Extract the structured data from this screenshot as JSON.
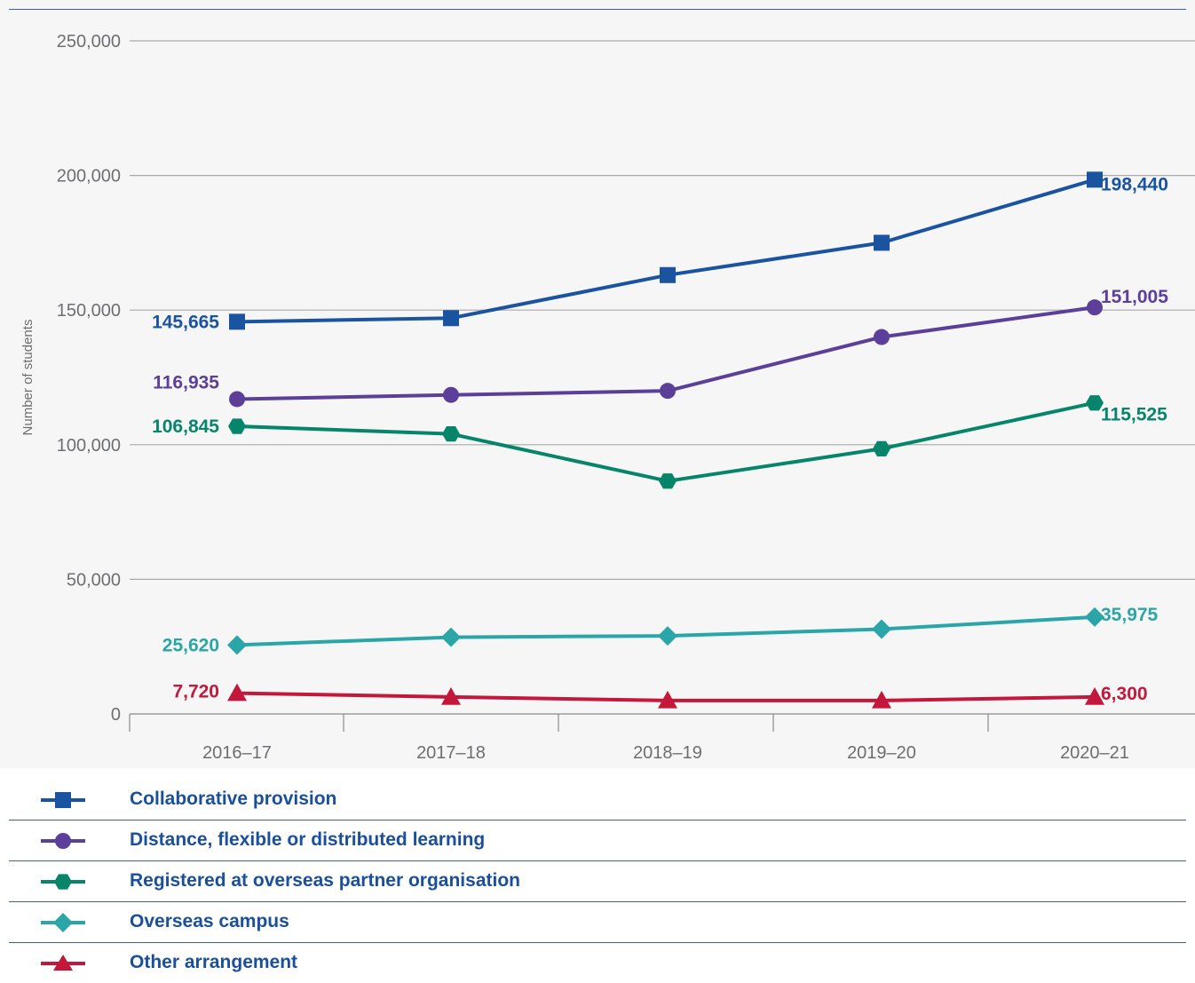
{
  "chart_data": {
    "type": "line",
    "title": "",
    "xlabel": "",
    "ylabel": "Number of students",
    "ylim": [
      0,
      250000
    ],
    "yticks": [
      0,
      50000,
      100000,
      150000,
      200000,
      250000
    ],
    "ytick_labels": [
      "0",
      "50,000",
      "100,000",
      "150,000",
      "200,000",
      "250,000"
    ],
    "categories": [
      "2016–17",
      "2017–18",
      "2018–19",
      "2019–20",
      "2020–21"
    ],
    "grid": "horizontal",
    "legend_position": "bottom",
    "series": [
      {
        "name": "Collaborative provision",
        "color": "#1a54a0",
        "marker": "square",
        "values": [
          145665,
          147000,
          163000,
          175000,
          198440
        ],
        "labels": {
          "first": "145,665",
          "last": "198,440"
        }
      },
      {
        "name": "Distance, flexible or distributed learning",
        "color": "#5b3f98",
        "marker": "circle",
        "values": [
          116935,
          118500,
          120000,
          140000,
          151005
        ],
        "labels": {
          "first": "116,935",
          "last": "151,005"
        }
      },
      {
        "name": "Registered at overseas partner organisation",
        "color": "#06856a",
        "marker": "hexagon",
        "values": [
          106845,
          104000,
          86500,
          98500,
          115525
        ],
        "labels": {
          "first": "106,845",
          "last": "115,525"
        }
      },
      {
        "name": "Overseas campus",
        "color": "#2aa5a8",
        "marker": "diamond",
        "values": [
          25620,
          28500,
          29000,
          31500,
          35975
        ],
        "labels": {
          "first": "25,620",
          "last": "35,975"
        }
      },
      {
        "name": "Other arrangement",
        "color": "#c3183b",
        "marker": "triangle",
        "values": [
          7720,
          6300,
          5000,
          5000,
          6300
        ],
        "labels": {
          "first": "7,720",
          "last": "6,300"
        }
      }
    ]
  }
}
